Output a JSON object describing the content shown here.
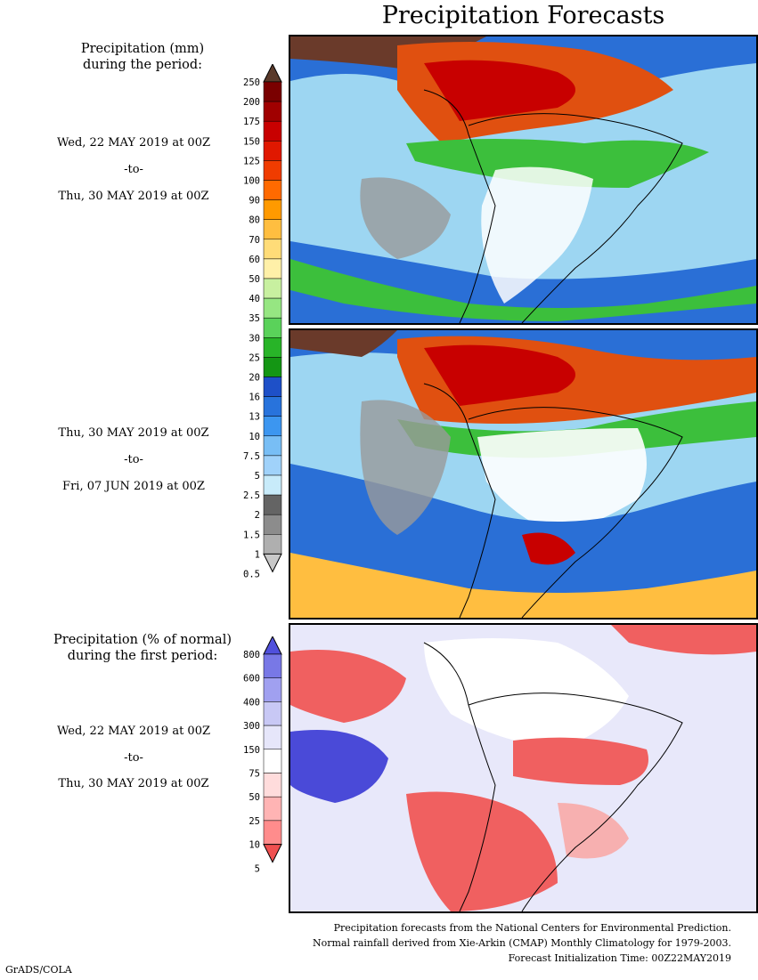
{
  "title": "Precipitation Forecasts",
  "left_panels": {
    "mm_heading": [
      "Precipitation (mm)",
      "during the period:"
    ],
    "period1": {
      "from": "Wed, 22 MAY 2019 at 00Z",
      "sep": "-to-",
      "to": "Thu, 30 MAY 2019 at 00Z"
    },
    "period2": {
      "from": "Thu, 30 MAY 2019 at 00Z",
      "sep": "-to-",
      "to": "Fri, 07 JUN 2019 at 00Z"
    },
    "pct_heading": [
      "Precipitation (% of normal)",
      "during the first period:"
    ],
    "period3": {
      "from": "Wed, 22 MAY 2019 at 00Z",
      "sep": "-to-",
      "to": "Thu, 30 MAY 2019 at 00Z"
    }
  },
  "colorbar_mm": {
    "labels": [
      "250",
      "200",
      "175",
      "150",
      "125",
      "100",
      "90",
      "80",
      "70",
      "60",
      "50",
      "40",
      "35",
      "30",
      "25",
      "20",
      "16",
      "13",
      "10",
      "7.5",
      "5",
      "2.5",
      "2",
      "1.5",
      "1",
      "0.5"
    ],
    "colors": [
      "#5a3a2a",
      "#7a0000",
      "#a00000",
      "#c80000",
      "#e01800",
      "#f03c00",
      "#ff6a00",
      "#ff9a00",
      "#ffbe40",
      "#ffdc78",
      "#fff0a8",
      "#c8f0a0",
      "#96e682",
      "#5ad25a",
      "#28b428",
      "#149614",
      "#1e50c8",
      "#2873dc",
      "#3c96f0",
      "#78bef5",
      "#a0d2fa",
      "#c8ebfa",
      "#646464",
      "#8c8c8c",
      "#afafaf",
      "#c8c8c8"
    ]
  },
  "colorbar_pct": {
    "labels": [
      "800",
      "600",
      "400",
      "300",
      "150",
      "75",
      "50",
      "25",
      "10",
      "5"
    ],
    "colors": [
      "#5050dc",
      "#7878e6",
      "#a0a0f0",
      "#c8c8f5",
      "#e6e6fa",
      "#ffffff",
      "#ffdcdc",
      "#ffb4b4",
      "#ff8c8c",
      "#f05050"
    ]
  },
  "footer": [
    "Precipitation forecasts from the National Centers for Environmental Prediction.",
    "Normal rainfall derived from Xie-Arkin (CMAP) Monthly Climatology for 1979-2003.",
    "Forecast Initialization Time: 00Z22MAY2019"
  ],
  "credit": "GrADS/COLA"
}
